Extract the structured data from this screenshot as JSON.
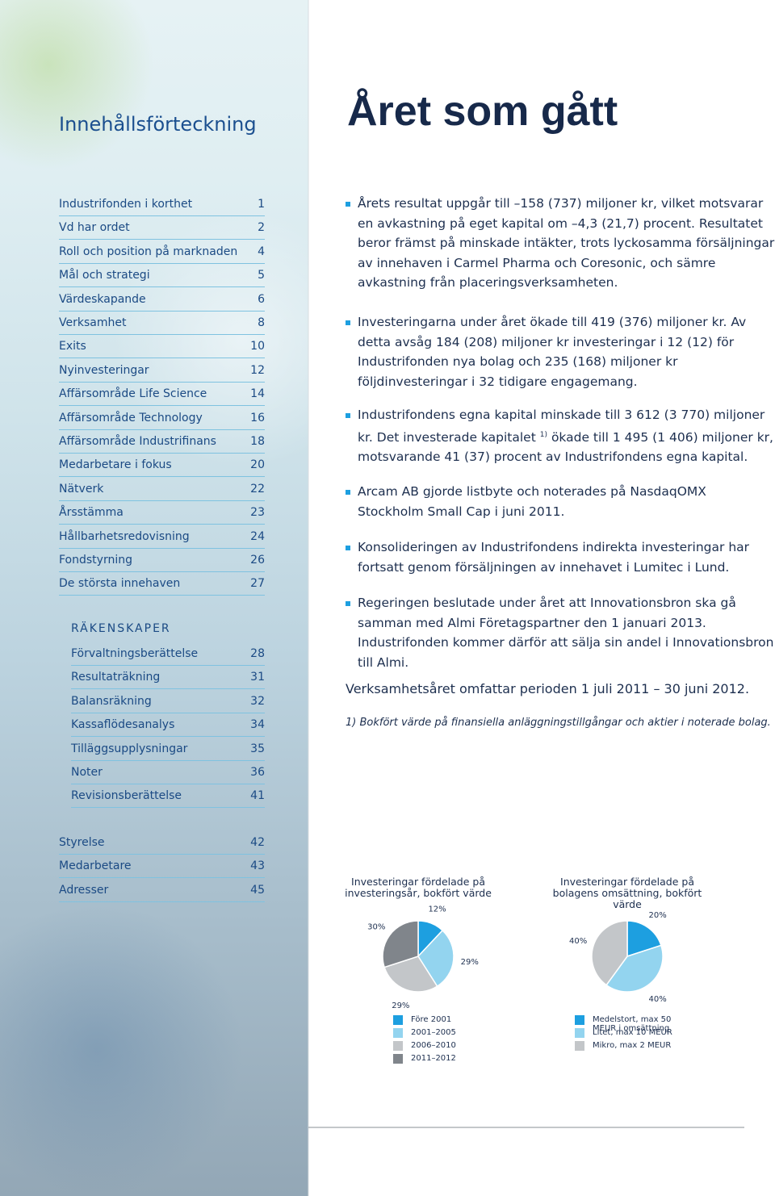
{
  "toc": {
    "title": "Innehållsförteckning",
    "items": [
      {
        "label": "Industrifonden i korthet",
        "page": 1
      },
      {
        "label": "Vd har ordet",
        "page": 2
      },
      {
        "label": "Roll och position på marknaden",
        "page": 4
      },
      {
        "label": "Mål och strategi",
        "page": 5
      },
      {
        "label": "Värdeskapande",
        "page": 6
      },
      {
        "label": "Verksamhet",
        "page": 8
      },
      {
        "label": "Exits",
        "page": 10
      },
      {
        "label": "Nyinvesteringar",
        "page": 12
      },
      {
        "label": "Affärsområde Life Science",
        "page": 14
      },
      {
        "label": "Affärsområde Technology",
        "page": 16
      },
      {
        "label": "Affärsområde Industrifinans",
        "page": 18
      },
      {
        "label": "Medarbetare i fokus",
        "page": 20
      },
      {
        "label": "Nätverk",
        "page": 22
      },
      {
        "label": "Årsstämma",
        "page": 23
      },
      {
        "label": "Hållbarhetsredovisning",
        "page": 24
      },
      {
        "label": "Fondstyrning",
        "page": 26
      },
      {
        "label": "De största innehaven",
        "page": 27
      }
    ],
    "section_heading": "RÄKENSKAPER",
    "section_items": [
      {
        "label": "Förvaltningsberättelse",
        "page": 28
      },
      {
        "label": "Resultaträkning",
        "page": 31
      },
      {
        "label": "Balansräkning",
        "page": 32
      },
      {
        "label": "Kassaflödesanalys",
        "page": 34
      },
      {
        "label": "Tilläggsupplysningar",
        "page": 35
      },
      {
        "label": "Noter",
        "page": 36
      },
      {
        "label": "Revisionsberättelse",
        "page": 41
      }
    ],
    "extra_items": [
      {
        "label": "Styrelse",
        "page": 42
      },
      {
        "label": "Medarbetare",
        "page": 43
      },
      {
        "label": "Adresser",
        "page": 45
      }
    ]
  },
  "main": {
    "title": "Året som gått",
    "bullets": [
      [
        "Årets resultat uppgår till –158 (737) miljoner kr, vilket motsvarar en avkastning på eget kapital om –4,3 (21,7) procent. Resultatet beror främst på minskade intäkter, trots lyckosamma försäljningar av innehaven i Carmel Pharma och Coresonic, och sämre avkastning från placeringsverksamheten."
      ],
      [
        "Investeringarna under året ökade till 419 (376) miljoner kr. Av detta avsåg 184 (208) miljoner kr investeringar i 12 (12) för Industrifonden nya bolag och 235 (168) miljoner kr följdinvesteringar i 32 tidigare engagemang."
      ],
      [
        "Industrifondens egna kapital minskade till 3 612 (3 770) miljoner kr. Det investerade kapitalet",
        "1)",
        "ökade till 1 495 (1 406) miljoner kr, motsvarande 41 (37) procent av Industrifondens egna kapital."
      ],
      [
        "Arcam AB gjorde listbyte och noterades på NasdaqOMX Stockholm Small Cap i juni 2011."
      ],
      [
        "Konsolideringen av Industrifondens indirekta investeringar har fortsatt genom försäljningen av innehavet i Lumitec i Lund."
      ],
      [
        "Regeringen beslutade under året att Innovationsbron ska gå samman med Almi Företagspartner den 1 januari 2013. Industrifonden kommer därför att sälja sin andel i Innovationsbron till Almi."
      ]
    ],
    "period": "Verksamhetsåret omfattar perioden 1 juli 2011 – 30 juni 2012.",
    "footnote": "1) Bokfört värde på finansiella anläggningstillgångar och aktier i noterade bolag."
  },
  "chart_data": [
    {
      "type": "pie",
      "title": "Investeringar fördelade på investeringsår, bokfört värde",
      "categories": [
        "Före 2001",
        "2001–2005",
        "2006–2010",
        "2011–2012"
      ],
      "values": [
        12,
        29,
        29,
        30
      ],
      "value_labels": [
        "12%",
        "29%",
        "29%",
        "30%"
      ],
      "colors": [
        "#1d9fe0",
        "#93d4ef",
        "#c3c6c9",
        "#80858b"
      ]
    },
    {
      "type": "pie",
      "title": "Investeringar fördelade på bolagens omsättning, bokfört värde",
      "categories": [
        "Medelstort, max 50 MEUR i omsättning",
        "Litet, max 10 MEUR",
        "Mikro, max 2 MEUR"
      ],
      "values": [
        20,
        40,
        40
      ],
      "value_labels": [
        "20%",
        "40%",
        "40%"
      ],
      "colors": [
        "#1d9fe0",
        "#93d4ef",
        "#c3c6c9"
      ]
    }
  ]
}
